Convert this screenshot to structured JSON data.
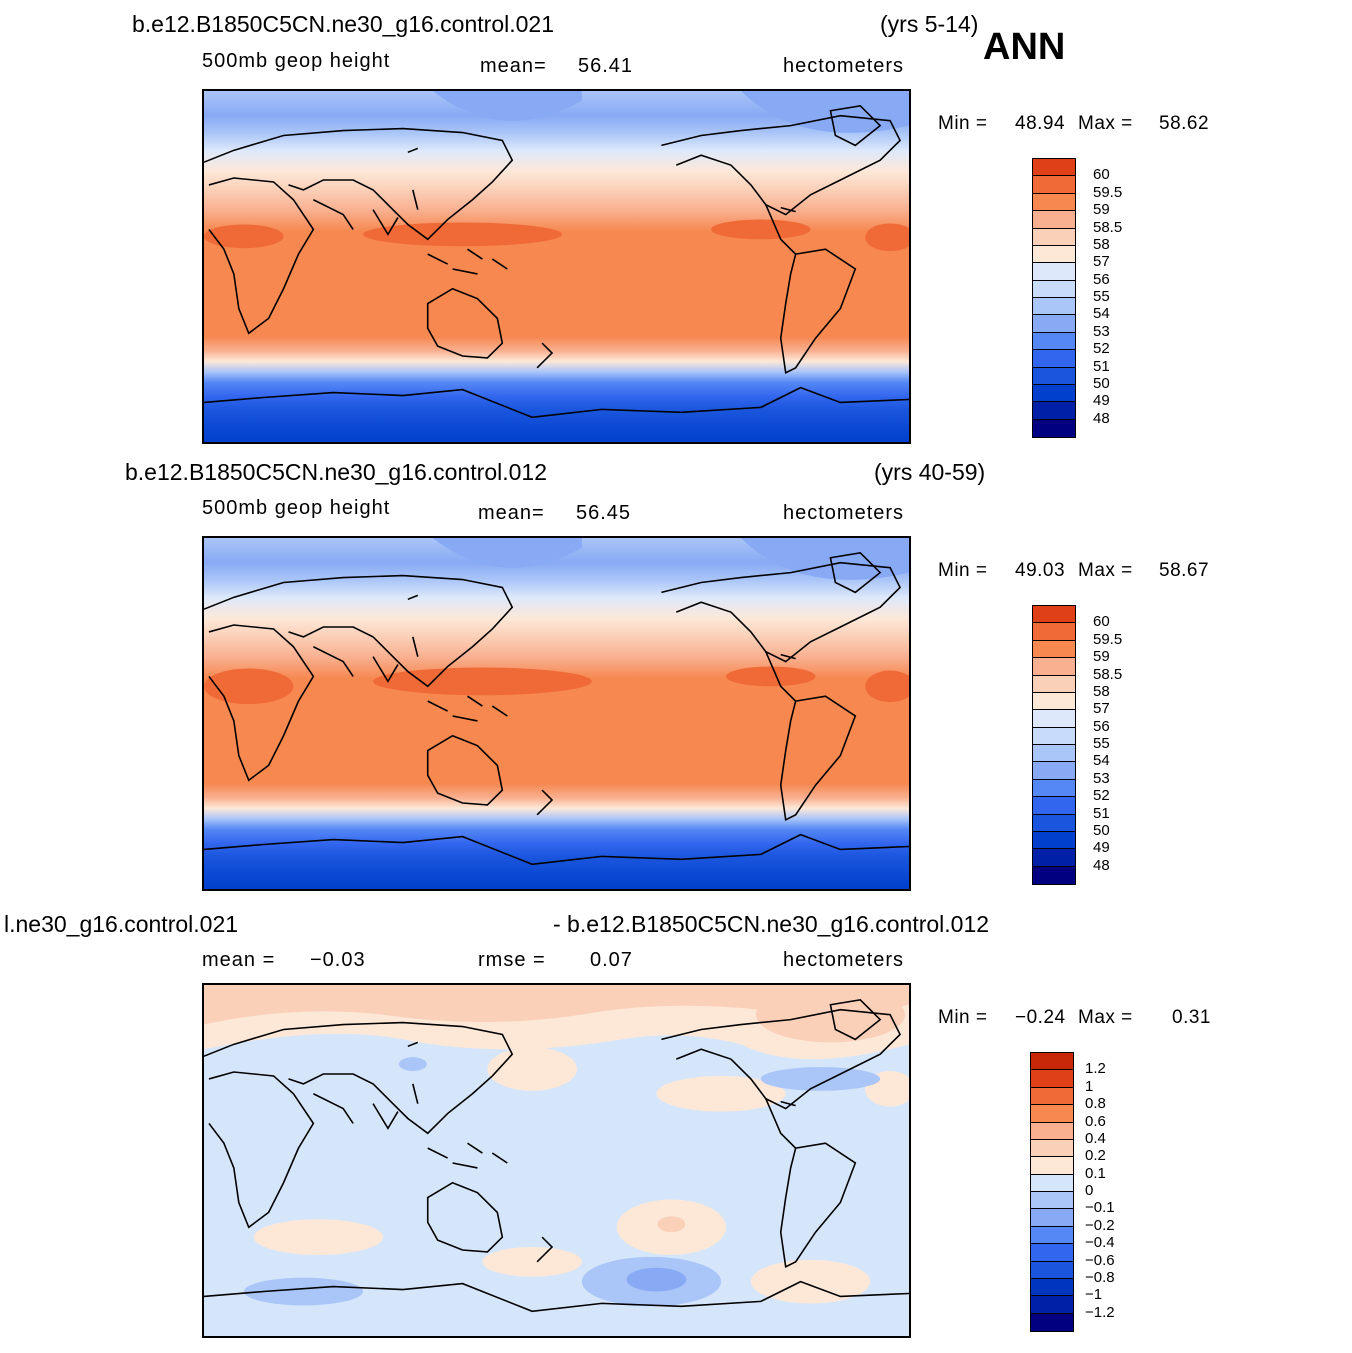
{
  "annotation": "ANN",
  "colors": {
    "abs_scale": [
      "#000080",
      "#0020a8",
      "#0035c0",
      "#0040cc",
      "#1a55dd",
      "#3366ee",
      "#5588f5",
      "#88aaf5",
      "#aac5f8",
      "#c8dbfa",
      "#dde9fb",
      "#fde8d8",
      "#fbd0b8",
      "#f9b090",
      "#f68850",
      "#f06a38",
      "#e04018",
      "#c82808",
      "#a01000",
      "#800000"
    ],
    "diff_scale": [
      "#000080",
      "#0020a8",
      "#0035c0",
      "#1a55dd",
      "#3366ee",
      "#5588f5",
      "#88aaf5",
      "#aac5f8",
      "#d5e6fb",
      "#fde8d8",
      "#fbd0b8",
      "#f9b090",
      "#f68850",
      "#f06a38",
      "#e04018",
      "#c82808",
      "#800000"
    ]
  },
  "panels": [
    {
      "case": "b.e12.B1850C5CN.ne30_g16.control.021",
      "years": "(yrs 5-14)",
      "variable": "500mb  geop  height",
      "stat_label": "mean=",
      "stat_value": "56.41",
      "units": "hectometers",
      "min_label": "Min =",
      "min_value": "48.94",
      "max_label": "Max =",
      "max_value": "58.62",
      "colorbar_labels": [
        "60",
        "59.5",
        "59",
        "58.5",
        "58",
        "57",
        "56",
        "55",
        "54",
        "53",
        "52",
        "51",
        "50",
        "49",
        "48"
      ]
    },
    {
      "case": "b.e12.B1850C5CN.ne30_g16.control.012",
      "years": "(yrs 40-59)",
      "variable": "500mb  geop  height",
      "stat_label": "mean=",
      "stat_value": "56.45",
      "units": "hectometers",
      "min_label": "Min =",
      "min_value": "49.03",
      "max_label": "Max =",
      "max_value": "58.67",
      "colorbar_labels": [
        "60",
        "59.5",
        "59",
        "58.5",
        "58",
        "57",
        "56",
        "55",
        "54",
        "53",
        "52",
        "51",
        "50",
        "49",
        "48"
      ]
    },
    {
      "case_left": "l.ne30_g16.control.021",
      "case_right": "- b.e12.B1850C5CN.ne30_g16.control.012",
      "mean_label": "mean =",
      "mean_value": "−0.03",
      "rmse_label": "rmse =",
      "rmse_value": "0.07",
      "units": "hectometers",
      "min_label": "Min =",
      "min_value": "−0.24",
      "max_label": "Max =",
      "max_value": "0.31",
      "colorbar_labels": [
        "1.2",
        "1",
        "0.8",
        "0.6",
        "0.4",
        "0.2",
        "0.1",
        "0",
        "−0.1",
        "−0.2",
        "−0.4",
        "−0.6",
        "−0.8",
        "−1",
        "−1.2"
      ]
    }
  ]
}
